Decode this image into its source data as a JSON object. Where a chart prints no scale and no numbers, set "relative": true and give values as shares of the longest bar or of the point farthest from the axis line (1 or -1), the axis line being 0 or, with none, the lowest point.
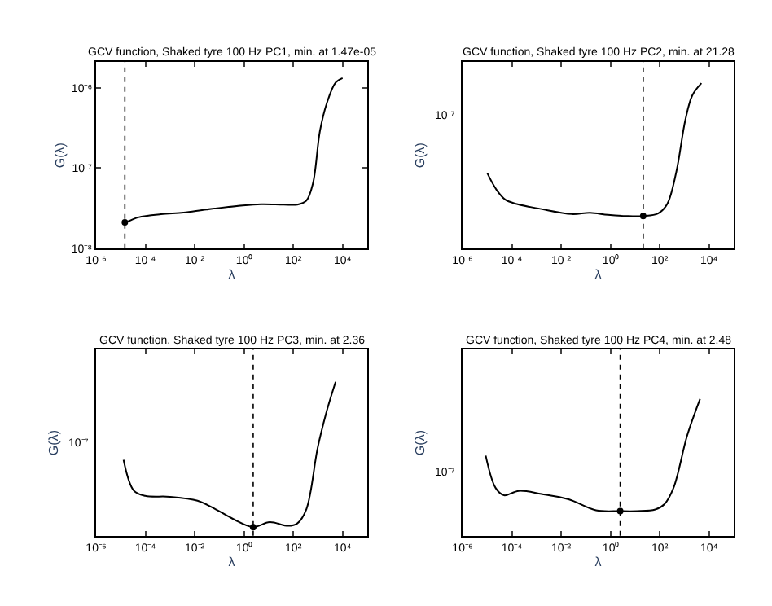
{
  "chart_data": [
    {
      "type": "line",
      "title": "GCV function, Shaked tyre 100 Hz PC1, min. at 1.47e-05",
      "xlabel": "λ",
      "ylabel": "G(λ)",
      "log": "xy",
      "xlim": [
        1e-06,
        100000.0
      ],
      "xticks": [
        {
          "value": 1e-06,
          "label": "10⁻⁶"
        },
        {
          "value": 0.0001,
          "label": "10⁻⁴"
        },
        {
          "value": 0.01,
          "label": "10⁻²"
        },
        {
          "value": 1,
          "label": "10⁰"
        },
        {
          "value": 100,
          "label": "10²"
        },
        {
          "value": 10000,
          "label": "10⁴"
        }
      ],
      "ylim": [
        1e-08,
        2.1e-06
      ],
      "yticks": [
        {
          "value": 1e-08,
          "label": "10⁻⁸"
        },
        {
          "value": 1e-07,
          "label": "10⁻⁷"
        },
        {
          "value": 1e-06,
          "label": "10⁻⁶"
        }
      ],
      "ref_lines": [
        {
          "axis": "x",
          "value": 1.47e-05,
          "line_style": "dotted",
          "color": "#000000"
        }
      ],
      "series": [
        {
          "color": "#000000",
          "marker": "none",
          "line_style": "solid",
          "x": [
            1.17e-05,
            1.47e-05,
            5.1e-05,
            0.00043,
            0.0035,
            0.03,
            0.89,
            4.9,
            41,
            145,
            340,
            630,
            1200,
            2300,
            5200,
            10000
          ],
          "values": [
            2.16e-08,
            2.11e-08,
            2.43e-08,
            2.66e-08,
            2.79e-08,
            3.05e-08,
            3.43e-08,
            3.55e-08,
            3.51e-08,
            3.51e-08,
            3.94e-08,
            6.5e-08,
            2.9e-07,
            6.5e-07,
            1.17e-06,
            1.33e-06
          ]
        },
        {
          "type": "scatter",
          "color": "#000000",
          "marker": "circle",
          "x": [
            1.47e-05
          ],
          "values": [
            2.11e-08
          ]
        }
      ]
    },
    {
      "type": "line",
      "title": "GCV function, Shaked tyre 100 Hz PC2, min. at 21.28",
      "xlabel": "λ",
      "ylabel": "G(λ)",
      "log": "x",
      "relative": true,
      "annotations": [
        "10⁻⁷"
      ],
      "xlim": [
        1e-06,
        100000.0
      ],
      "xticks": [
        {
          "value": 1e-06,
          "label": "10⁻⁶"
        },
        {
          "value": 0.0001,
          "label": "10⁻⁴"
        },
        {
          "value": 0.01,
          "label": "10⁻²"
        },
        {
          "value": 1,
          "label": "10⁰"
        },
        {
          "value": 100,
          "label": "10²"
        },
        {
          "value": 10000,
          "label": "10⁴"
        }
      ],
      "ref_lines": [
        {
          "axis": "x",
          "value": 21.28,
          "line_style": "dotted",
          "color": "#000000"
        }
      ],
      "series": [
        {
          "color": "#000000",
          "marker": "none",
          "line_style": "solid",
          "x": [
            1e-05,
            2.4e-05,
            5.6e-05,
            0.00016,
            0.0014,
            0.027,
            0.15,
            0.79,
            4.4,
            21.28,
            85,
            200,
            470,
            1100,
            2100,
            4900
          ],
          "values": [
            0.456,
            0.354,
            0.293,
            0.268,
            0.239,
            0.207,
            0.215,
            0.202,
            0.195,
            0.195,
            0.21,
            0.268,
            0.463,
            0.78,
            0.927,
            1
          ]
        },
        {
          "type": "scatter",
          "color": "#000000",
          "marker": "circle",
          "x": [
            21.28
          ],
          "values": [
            0.195
          ]
        }
      ]
    },
    {
      "type": "line",
      "title": "GCV function, Shaked tyre 100 Hz PC3, min. at 2.36",
      "xlabel": "λ",
      "ylabel": "G(λ)",
      "log": "x",
      "relative": true,
      "annotations": [
        "10⁻⁷"
      ],
      "xlim": [
        1e-06,
        100000.0
      ],
      "xticks": [
        {
          "value": 1e-06,
          "label": "10⁻⁶"
        },
        {
          "value": 0.0001,
          "label": "10⁻⁴"
        },
        {
          "value": 0.01,
          "label": "10⁻²"
        },
        {
          "value": 1,
          "label": "10⁰"
        },
        {
          "value": 100,
          "label": "10²"
        },
        {
          "value": 10000,
          "label": "10⁴"
        }
      ],
      "ref_lines": [
        {
          "axis": "x",
          "value": 2.36,
          "line_style": "dotted",
          "color": "#000000"
        }
      ],
      "series": [
        {
          "color": "#000000",
          "marker": "none",
          "line_style": "solid",
          "x": [
            1.3e-05,
            3.4e-05,
            9.8e-05,
            0.001,
            0.013,
            0.069,
            0.38,
            2.36,
            11,
            62,
            145,
            340,
            980,
            2300,
            5200
          ],
          "values": [
            0.493,
            0.293,
            0.259,
            0.253,
            0.227,
            0.173,
            0.107,
            0.056,
            0.088,
            0.064,
            0.08,
            0.173,
            0.573,
            0.813,
            1
          ]
        },
        {
          "type": "scatter",
          "color": "#000000",
          "marker": "circle",
          "x": [
            2.36
          ],
          "values": [
            0.056
          ]
        }
      ]
    },
    {
      "type": "line",
      "title": "GCV function, Shaked tyre 100 Hz PC4, min. at 2.48",
      "xlabel": "λ",
      "ylabel": "G(λ)",
      "log": "x",
      "relative": true,
      "annotations": [
        "10⁻⁷"
      ],
      "xlim": [
        1e-06,
        100000.0
      ],
      "xticks": [
        {
          "value": 1e-06,
          "label": "10⁻⁶"
        },
        {
          "value": 0.0001,
          "label": "10⁻⁴"
        },
        {
          "value": 0.01,
          "label": "10⁻²"
        },
        {
          "value": 1,
          "label": "10⁰"
        },
        {
          "value": 100,
          "label": "10²"
        },
        {
          "value": 10000,
          "label": "10⁴"
        }
      ],
      "ref_lines": [
        {
          "axis": "x",
          "value": 2.48,
          "line_style": "dotted",
          "color": "#000000"
        }
      ],
      "series": [
        {
          "color": "#000000",
          "marker": "none",
          "line_style": "solid",
          "x": [
            8.7e-06,
            2.2e-05,
            4.8e-05,
            0.00019,
            0.0016,
            0.02,
            0.26,
            2.48,
            12,
            66,
            155,
            360,
            1300,
            4300
          ],
          "values": [
            0.586,
            0.349,
            0.296,
            0.328,
            0.305,
            0.266,
            0.186,
            0.18,
            0.18,
            0.192,
            0.231,
            0.349,
            0.734,
            1
          ]
        },
        {
          "type": "scatter",
          "color": "#000000",
          "marker": "circle",
          "x": [
            2.48
          ],
          "values": [
            0.18
          ]
        }
      ]
    }
  ]
}
